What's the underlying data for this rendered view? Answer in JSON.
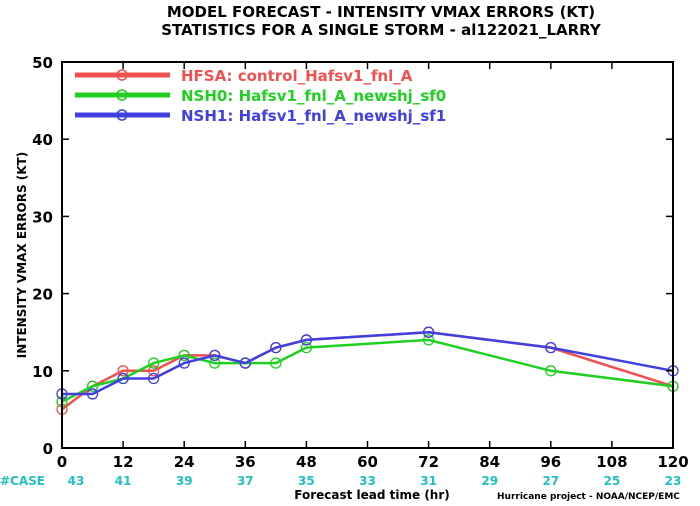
{
  "title_line1": "MODEL FORECAST - INTENSITY VMAX ERRORS (KT)",
  "title_line2": "STATISTICS FOR A SINGLE STORM - al122021_LARRY",
  "credit": "Hurricane project - NOAA/NCEP/EMC",
  "case_label": "#CASE",
  "chart_data": {
    "type": "line",
    "xlabel": "Forecast lead time (hr)",
    "ylabel": "INTENSITY VMAX ERRORS (KT)",
    "xlim": [
      0,
      120
    ],
    "ylim": [
      0,
      50
    ],
    "xticks": [
      0,
      12,
      24,
      36,
      48,
      60,
      72,
      84,
      96,
      108,
      120
    ],
    "yticks": [
      0,
      10,
      20,
      30,
      40,
      50
    ],
    "grid": false,
    "legend_position": "top-left",
    "cases": [
      {
        "x": 0,
        "n": "43"
      },
      {
        "x": 12,
        "n": "41"
      },
      {
        "x": 24,
        "n": "39"
      },
      {
        "x": 36,
        "n": "37"
      },
      {
        "x": 48,
        "n": "35"
      },
      {
        "x": 60,
        "n": "33"
      },
      {
        "x": 72,
        "n": "31"
      },
      {
        "x": 84,
        "n": "29"
      },
      {
        "x": 96,
        "n": "27"
      },
      {
        "x": 108,
        "n": "25"
      },
      {
        "x": 120,
        "n": "23"
      }
    ],
    "series": [
      {
        "name": "HFSA: control_Hafsv1_fnl_A",
        "color": "#f05050",
        "x": [
          0,
          6,
          12,
          18,
          24,
          30,
          36,
          42,
          48,
          72,
          96,
          120
        ],
        "y": [
          5,
          8,
          10,
          10,
          12,
          12,
          11,
          13,
          14,
          15,
          13,
          8
        ]
      },
      {
        "name": "NSH0: Hafsv1_fnl_A_newshj_sf0",
        "color": "#20d020",
        "x": [
          0,
          6,
          12,
          18,
          24,
          30,
          36,
          42,
          48,
          72,
          96,
          120
        ],
        "y": [
          6,
          8,
          9,
          11,
          12,
          11,
          11,
          11,
          13,
          14,
          10,
          8
        ]
      },
      {
        "name": "NSH1: Hafsv1_fnl_A_newshj_sf1",
        "color": "#4040e0",
        "x": [
          0,
          6,
          12,
          18,
          24,
          30,
          36,
          42,
          48,
          72,
          96,
          120
        ],
        "y": [
          7,
          7,
          9,
          9,
          11,
          12,
          11,
          13,
          14,
          15,
          13,
          10
        ]
      }
    ]
  }
}
